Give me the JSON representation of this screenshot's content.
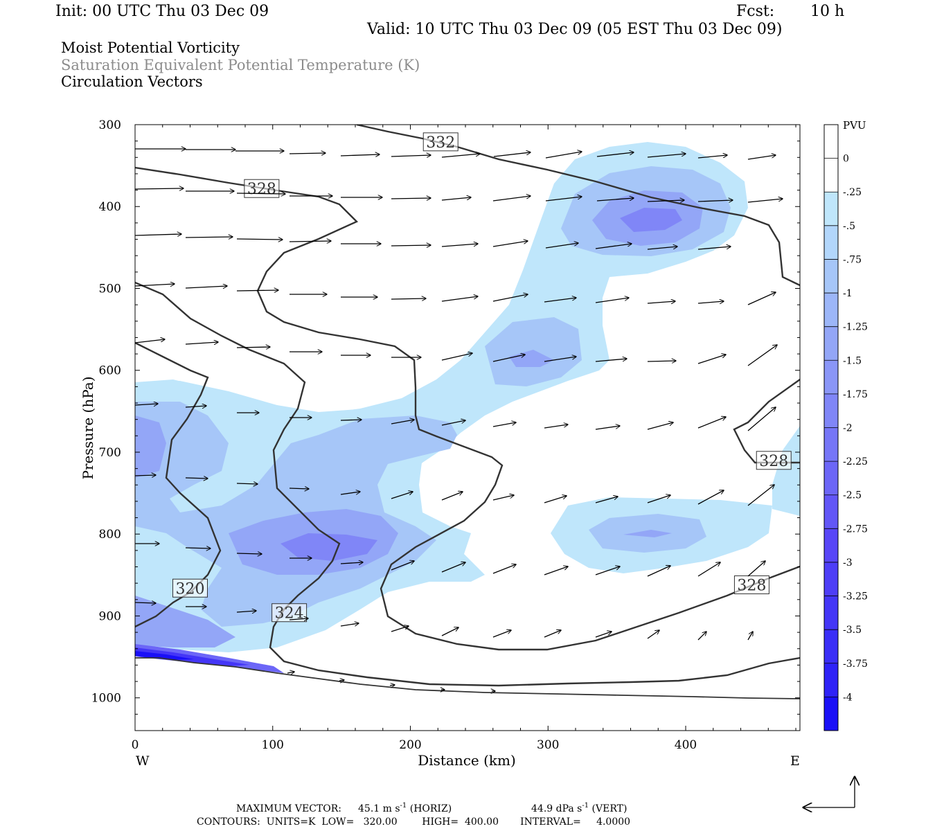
{
  "header": {
    "init": "Init: 00 UTC Thu 03 Dec 09",
    "fcst_label": "Fcst:",
    "fcst_value": "10 h",
    "valid": "Valid: 10 UTC Thu 03 Dec 09 (05 EST Thu 03 Dec 09)",
    "fields": [
      "Moist Potential Vorticity",
      "Saturation Equivalent Potential Temperature (K)",
      "Circulation Vectors"
    ]
  },
  "colors": {
    "field_primary": "#000000",
    "field_secondary": "#8c8c8c",
    "contour_line": "#333333",
    "shade_light": "#bfe6fb",
    "shade_mid": "#a6c6f8",
    "shade_dark": "#8ca6f7",
    "shade_darkest": "#1a1ef7"
  },
  "chart_data": {
    "type": "cross-section",
    "xlabel": "Distance (km)",
    "ylabel": "Pressure (hPa)",
    "xlim": [
      0,
      483
    ],
    "ylim": [
      300,
      1040
    ],
    "y_scale": "linear, inverted",
    "x_ticks": [
      "0",
      "100",
      "200",
      "300",
      "400"
    ],
    "y_ticks": [
      "300",
      "400",
      "500",
      "600",
      "700",
      "800",
      "900",
      "1000"
    ],
    "end_labels": {
      "left": "W",
      "right": "E"
    },
    "colorbar": {
      "unit": "PVU",
      "labels": [
        "0",
        "-.25",
        "-.5",
        "-.75",
        "-1",
        "-1.25",
        "-1.5",
        "-1.75",
        "-2",
        "-2.25",
        "-2.5",
        "-2.75",
        "-3",
        "-3.25",
        "-3.5",
        "-3.75",
        "-4"
      ],
      "colors": [
        "#ffffff",
        "#ffffff",
        "#bfe6fb",
        "#b2d6fb",
        "#a6c6f8",
        "#9cb6f8",
        "#93a6f7",
        "#8a96f7",
        "#8086f7",
        "#7676f7",
        "#6c66f7",
        "#6256f7",
        "#5846f7",
        "#4e3ef7",
        "#4436f7",
        "#3a2ef7",
        "#2e22f7",
        "#1a10f7"
      ]
    },
    "contour_labels": [
      {
        "text": "332",
        "x": 222,
        "p": 321
      },
      {
        "text": "328",
        "x": 92,
        "p": 378
      },
      {
        "text": "328",
        "x": 464,
        "p": 710
      },
      {
        "text": "328",
        "x": 448,
        "p": 862
      },
      {
        "text": "320",
        "x": 40,
        "p": 866
      },
      {
        "text": "324",
        "x": 112,
        "p": 896
      }
    ],
    "vector_info": {
      "max_label": "MAXIMUM VECTOR:",
      "horiz_value": "45.1 m s",
      "horiz_tail": " (HORIZ)",
      "vert_value": "44.9 dPa s",
      "vert_tail": " (VERT)",
      "exponent": "-1"
    },
    "contours_info": "CONTOURS:  UNITS=K  LOW=   320.00        HIGH=  400.00       INTERVAL=     4.0000"
  }
}
